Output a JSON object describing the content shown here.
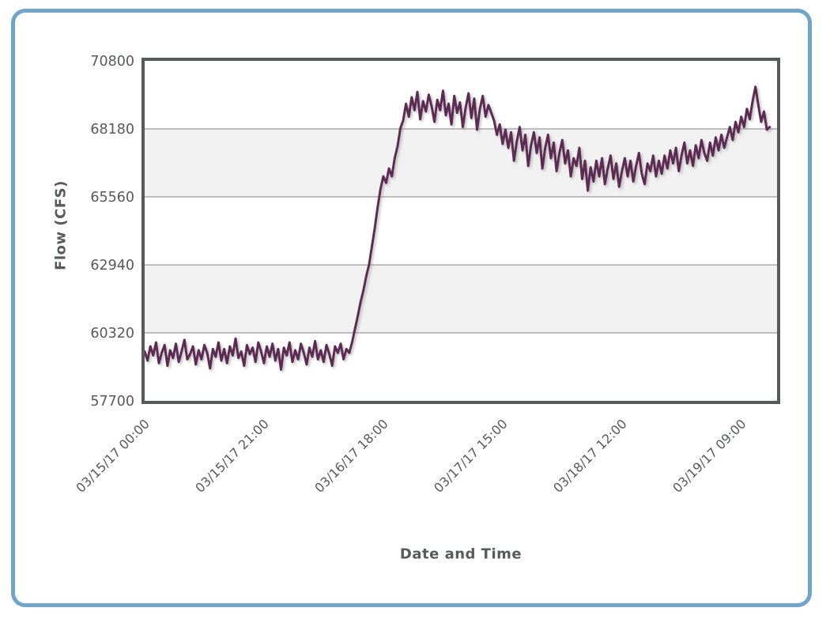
{
  "colors": {
    "text": "#58595B",
    "grid": "#9A9A9A",
    "plot_border": "#58595B",
    "band": "#F2F1F1",
    "line": "#5C2A52",
    "frame_border": "#6FA5CB",
    "background": "#FFFFFF"
  },
  "chart_data": {
    "type": "line",
    "title": "",
    "xlabel": "Date and Time",
    "ylabel": "Flow (CFS)",
    "legend": [],
    "grid": "horizontal-only",
    "start_datetime_label": "03/15/17 00:00",
    "sample_interval_hours": 0.5,
    "x_ticks": [
      {
        "hours": 0,
        "label": "03/15/17 00:00"
      },
      {
        "hours": 21,
        "label": "03/15/17 21:00"
      },
      {
        "hours": 42,
        "label": "03/16/17 18:00"
      },
      {
        "hours": 63,
        "label": "03/17/17 15:00"
      },
      {
        "hours": 84,
        "label": "03/18/17 12:00"
      },
      {
        "hours": 105,
        "label": "03/19/17 09:00"
      }
    ],
    "y_ticks": [
      57700,
      60320,
      62940,
      65560,
      68180,
      70800
    ],
    "ylim": [
      57700,
      70800
    ],
    "xlim_hours": [
      0,
      111.3
    ],
    "values": [
      59600,
      59250,
      59800,
      59450,
      59950,
      59150,
      59550,
      59850,
      59050,
      59650,
      59350,
      59900,
      59200,
      59600,
      60050,
      59300,
      59500,
      59800,
      59100,
      59650,
      59300,
      59850,
      59550,
      58950,
      59700,
      59400,
      59950,
      59250,
      59700,
      59150,
      59800,
      59450,
      60100,
      59350,
      59600,
      59050,
      59850,
      59500,
      59750,
      59200,
      59950,
      59600,
      59150,
      59800,
      59400,
      59900,
      59250,
      59700,
      58900,
      59750,
      59450,
      59950,
      59200,
      59650,
      59300,
      59900,
      59550,
      59100,
      59750,
      59400,
      60000,
      59300,
      59650,
      59200,
      59850,
      59500,
      59050,
      59800,
      59550,
      59900,
      59300,
      59700,
      59550,
      59950,
      60450,
      60950,
      61500,
      61950,
      62500,
      62950,
      63650,
      64350,
      65150,
      65850,
      66350,
      66100,
      66650,
      66350,
      67050,
      67500,
      68200,
      68500,
      69150,
      68650,
      69400,
      68900,
      69600,
      68550,
      69250,
      68850,
      69500,
      69050,
      68450,
      69300,
      68900,
      69650,
      68700,
      69150,
      68350,
      69450,
      68800,
      69200,
      68250,
      69000,
      69550,
      68600,
      69350,
      68150,
      68950,
      69450,
      68650,
      69100,
      68800,
      68500,
      67950,
      68350,
      67600,
      68150,
      67450,
      68050,
      66950,
      67700,
      68250,
      67350,
      67950,
      66750,
      67550,
      68050,
      67250,
      67850,
      66650,
      67450,
      67950,
      67050,
      67650,
      66550,
      67250,
      67750,
      66850,
      67350,
      66350,
      67050,
      66750,
      67450,
      66250,
      66950,
      65800,
      66700,
      66150,
      66950,
      66350,
      67050,
      66050,
      66650,
      67150,
      66250,
      66850,
      65950,
      66550,
      67050,
      66350,
      66950,
      66150,
      66750,
      67250,
      66450,
      66050,
      66850,
      66550,
      67150,
      66350,
      66950,
      66450,
      67150,
      66650,
      67350,
      66850,
      67450,
      66550,
      67150,
      67650,
      66850,
      67350,
      66750,
      67550,
      67050,
      67750,
      67250,
      66950,
      67650,
      67150,
      67850,
      67350,
      67950,
      67450,
      67850,
      68250,
      67750,
      68450,
      68050,
      68650,
      68250,
      68950,
      68550,
      69250,
      69800,
      69100,
      68450,
      68850,
      68150,
      68250
    ]
  }
}
